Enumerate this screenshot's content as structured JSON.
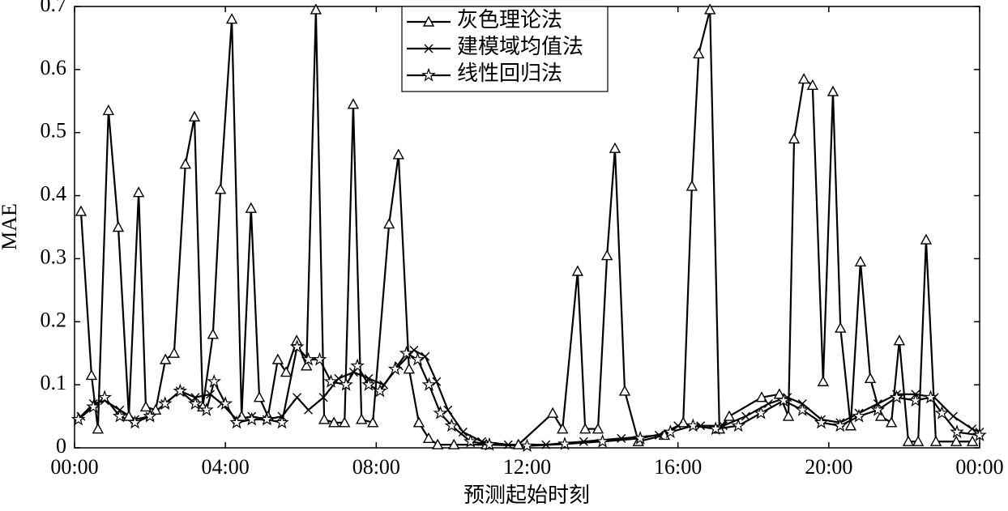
{
  "chart_data": {
    "type": "line",
    "xlabel": "预测起始时刻",
    "ylabel": "MAE",
    "xlim": [
      0,
      24
    ],
    "ylim": [
      0,
      0.7
    ],
    "xticks": [
      {
        "value": 0,
        "label": "00:00"
      },
      {
        "value": 4,
        "label": "04:00"
      },
      {
        "value": 8,
        "label": "08:00"
      },
      {
        "value": 12,
        "label": "12:00"
      },
      {
        "value": 16,
        "label": "16:00"
      },
      {
        "value": 20,
        "label": "20:00"
      },
      {
        "value": 24,
        "label": "00:00"
      }
    ],
    "yticks": [
      0,
      0.1,
      0.2,
      0.3,
      0.4,
      0.5,
      0.6,
      0.7
    ],
    "legend": "upper center",
    "series": [
      {
        "name": "灰色理论法",
        "color": "#000000",
        "marker": "triangle",
        "x": [
          0.17,
          0.45,
          0.62,
          0.9,
          1.16,
          1.44,
          1.7,
          1.89,
          2.15,
          2.41,
          2.64,
          2.94,
          3.18,
          3.4,
          3.67,
          3.87,
          4.17,
          4.43,
          4.68,
          4.9,
          5.13,
          5.39,
          5.61,
          5.89,
          6.15,
          6.4,
          6.62,
          6.88,
          7.16,
          7.39,
          7.61,
          7.91,
          8.34,
          8.59,
          8.87,
          9.13,
          9.39,
          9.63,
          10.06,
          10.92,
          11.77,
          12.68,
          12.94,
          13.34,
          13.54,
          13.88,
          14.12,
          14.33,
          14.59,
          14.95,
          15.64,
          16.14,
          16.37,
          16.55,
          16.85,
          17.1,
          17.36,
          18.22,
          18.69,
          18.93,
          19.08,
          19.34,
          19.57,
          19.85,
          20.11,
          20.31,
          20.58,
          20.84,
          21.1,
          21.38,
          21.66,
          21.87,
          22.11,
          22.37,
          22.58,
          22.84,
          23.38,
          23.81
        ],
        "values": [
          0.375,
          0.115,
          0.03,
          0.535,
          0.35,
          0.05,
          0.405,
          0.065,
          0.06,
          0.14,
          0.15,
          0.45,
          0.525,
          0.065,
          0.18,
          0.41,
          0.68,
          0.05,
          0.38,
          0.08,
          0.05,
          0.14,
          0.12,
          0.17,
          0.13,
          0.695,
          0.045,
          0.04,
          0.04,
          0.545,
          0.045,
          0.04,
          0.355,
          0.465,
          0.125,
          0.04,
          0.015,
          0.005,
          0.005,
          0.005,
          0.005,
          0.055,
          0.03,
          0.28,
          0.03,
          0.03,
          0.305,
          0.475,
          0.09,
          0.01,
          0.02,
          0.04,
          0.415,
          0.625,
          0.695,
          0.03,
          0.05,
          0.08,
          0.085,
          0.05,
          0.49,
          0.585,
          0.575,
          0.105,
          0.565,
          0.19,
          0.035,
          0.295,
          0.11,
          0.05,
          0.04,
          0.17,
          0.01,
          0.01,
          0.33,
          0.01,
          0.01,
          0.01
        ]
      },
      {
        "name": "建模域均值法",
        "color": "#000000",
        "marker": "cross",
        "x": [
          0.17,
          0.5,
          0.8,
          1.2,
          1.6,
          2.0,
          2.4,
          2.8,
          3.2,
          3.6,
          3.9,
          4.3,
          4.7,
          5.1,
          5.5,
          5.9,
          6.2,
          6.6,
          7.0,
          7.4,
          7.8,
          8.2,
          8.6,
          9.0,
          9.3,
          9.6,
          9.9,
          10.3,
          10.8,
          11.5,
          12.5,
          13.5,
          14.5,
          15.5,
          16.0,
          16.6,
          17.2,
          17.8,
          18.4,
          18.9,
          19.3,
          19.8,
          20.3,
          20.8,
          21.3,
          21.8,
          22.3,
          22.8,
          23.3,
          23.8,
          24
        ],
        "values": [
          0.05,
          0.07,
          0.075,
          0.06,
          0.045,
          0.05,
          0.07,
          0.09,
          0.08,
          0.085,
          0.07,
          0.045,
          0.05,
          0.045,
          0.05,
          0.08,
          0.06,
          0.08,
          0.11,
          0.12,
          0.11,
          0.1,
          0.13,
          0.155,
          0.145,
          0.105,
          0.06,
          0.025,
          0.01,
          0.005,
          0.005,
          0.01,
          0.015,
          0.02,
          0.035,
          0.035,
          0.035,
          0.05,
          0.07,
          0.08,
          0.07,
          0.045,
          0.04,
          0.055,
          0.07,
          0.085,
          0.085,
          0.08,
          0.05,
          0.03,
          0.025
        ]
      },
      {
        "name": "线性回归法",
        "color": "#000000",
        "marker": "star",
        "x": [
          0.1,
          0.5,
          0.8,
          1.2,
          1.6,
          2.0,
          2.4,
          2.8,
          3.2,
          3.5,
          3.7,
          4.0,
          4.3,
          4.7,
          5.1,
          5.5,
          5.9,
          6.2,
          6.5,
          6.8,
          7.2,
          7.5,
          7.8,
          8.1,
          8.5,
          8.8,
          9.1,
          9.4,
          9.7,
          10.0,
          10.5,
          11.0,
          12.0,
          13.0,
          14.0,
          15.0,
          15.8,
          16.4,
          17.0,
          17.6,
          18.2,
          18.8,
          19.3,
          19.8,
          20.3,
          20.8,
          21.3,
          21.8,
          22.3,
          22.7,
          23.0,
          23.4,
          24.0
        ],
        "values": [
          0.045,
          0.065,
          0.08,
          0.05,
          0.04,
          0.05,
          0.07,
          0.09,
          0.07,
          0.06,
          0.105,
          0.07,
          0.04,
          0.045,
          0.045,
          0.04,
          0.16,
          0.14,
          0.14,
          0.105,
          0.1,
          0.13,
          0.1,
          0.09,
          0.125,
          0.15,
          0.14,
          0.1,
          0.055,
          0.035,
          0.01,
          0.005,
          0.003,
          0.006,
          0.01,
          0.015,
          0.025,
          0.035,
          0.03,
          0.035,
          0.055,
          0.075,
          0.06,
          0.04,
          0.035,
          0.05,
          0.06,
          0.08,
          0.075,
          0.08,
          0.055,
          0.025,
          0.02
        ]
      }
    ]
  }
}
